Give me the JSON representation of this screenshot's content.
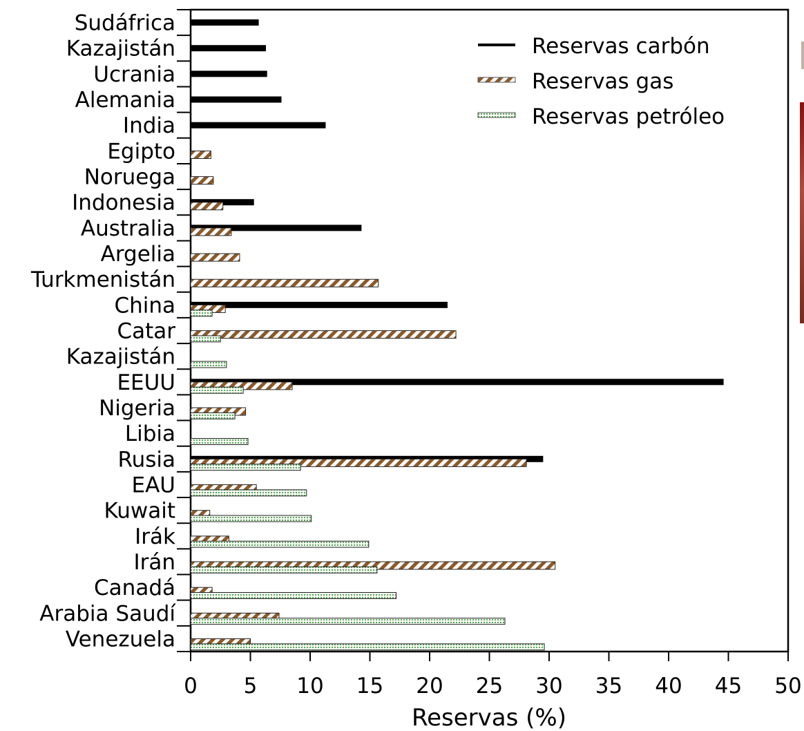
{
  "chart_data": {
    "type": "bar",
    "orientation": "horizontal",
    "categories": [
      "Sudáfrica",
      "Kazajistán",
      "Ucrania",
      "Alemania",
      "India",
      "Egipto",
      "Noruega",
      "Indonesia",
      "Australia",
      "Argelia",
      "Turkmenistán",
      "China",
      "Catar",
      "Kazajistán",
      "EEUU",
      "Nigeria",
      "Libia",
      "Rusia",
      "EAU",
      "Kuwait",
      "Irák",
      "Irán",
      "Canadá",
      "Arabia Saudí",
      "Venezuela"
    ],
    "series": [
      {
        "name": "Reservas carbón",
        "color": "#000000",
        "values": [
          5.7,
          6.3,
          6.4,
          7.6,
          11.3,
          null,
          null,
          5.3,
          14.3,
          null,
          null,
          21.5,
          null,
          null,
          44.6,
          null,
          null,
          29.5,
          null,
          null,
          null,
          null,
          null,
          null,
          null
        ]
      },
      {
        "name": "Reservas gas",
        "color": "#8b5a2b",
        "values": [
          null,
          null,
          null,
          null,
          null,
          1.7,
          1.9,
          2.7,
          3.4,
          4.1,
          15.7,
          2.9,
          22.2,
          null,
          8.5,
          4.6,
          null,
          28.1,
          5.5,
          1.6,
          3.2,
          30.5,
          1.8,
          7.4,
          5.0
        ]
      },
      {
        "name": "Reservas petróleo",
        "color": "#5aa05a",
        "values": [
          null,
          null,
          null,
          null,
          null,
          null,
          null,
          null,
          null,
          null,
          null,
          1.8,
          2.5,
          3.0,
          4.4,
          3.7,
          4.8,
          9.2,
          9.7,
          10.1,
          14.9,
          15.6,
          17.2,
          26.3,
          29.6
        ]
      }
    ],
    "xlabel": "Reservas (%)",
    "xlim": [
      0,
      50
    ],
    "xticks": [
      0,
      5,
      10,
      15,
      20,
      25,
      30,
      35,
      40,
      45,
      50
    ],
    "legend_position": "top-right",
    "grid": false
  }
}
